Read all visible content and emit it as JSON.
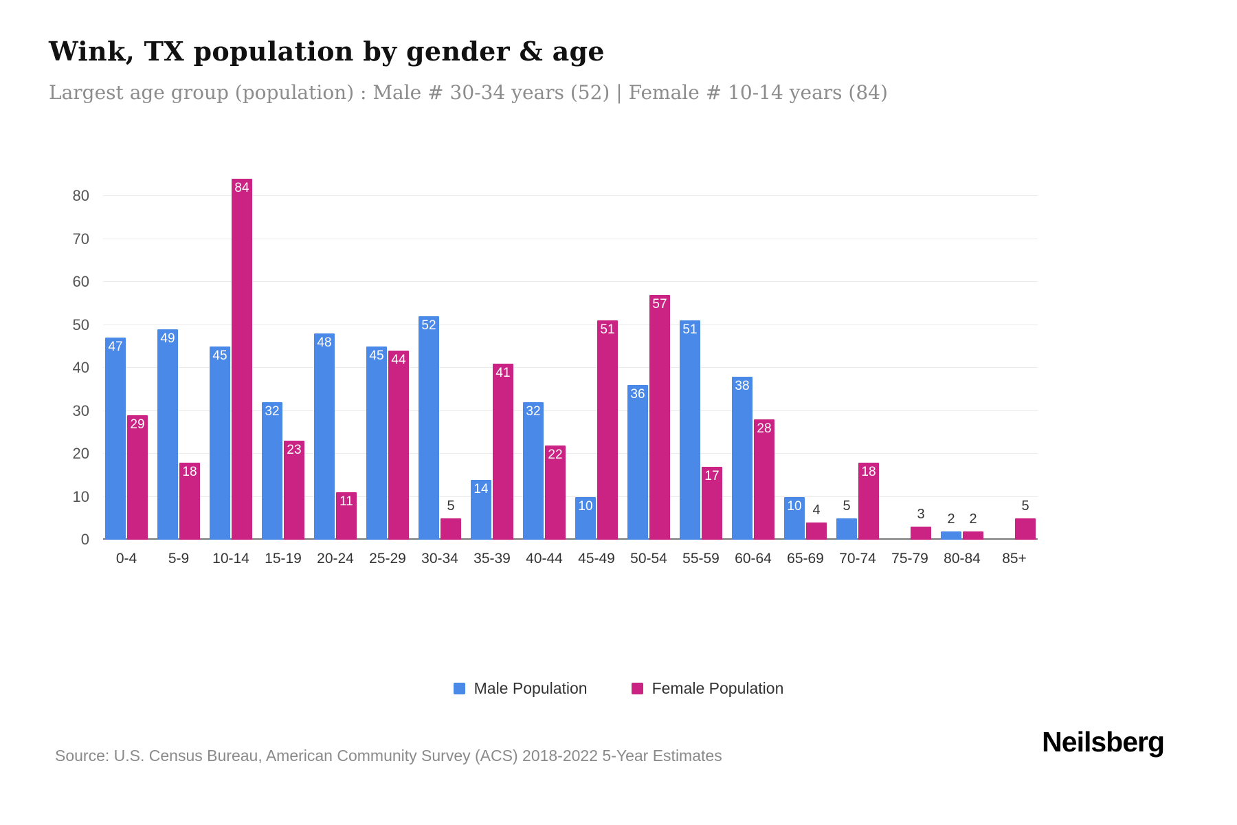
{
  "header": {
    "title": "Wink, TX population by gender & age",
    "subtitle": "Largest age group (population) : Male # 30-34 years (52) | Female # 10-14 years (84)"
  },
  "chart_data": {
    "type": "bar",
    "title": "Wink, TX population by gender & age",
    "categories": [
      "0-4",
      "5-9",
      "10-14",
      "15-19",
      "20-24",
      "25-29",
      "30-34",
      "35-39",
      "40-44",
      "45-49",
      "50-54",
      "55-59",
      "60-64",
      "65-69",
      "70-74",
      "75-79",
      "80-84",
      "85+"
    ],
    "series": [
      {
        "name": "Male Population",
        "color": "#4a89e8",
        "values": [
          47,
          49,
          45,
          32,
          48,
          45,
          52,
          14,
          32,
          10,
          36,
          51,
          38,
          10,
          5,
          0,
          2,
          0
        ]
      },
      {
        "name": "Female Population",
        "color": "#cb2384",
        "values": [
          29,
          18,
          84,
          23,
          11,
          44,
          5,
          41,
          22,
          51,
          57,
          17,
          28,
          4,
          18,
          3,
          2,
          5
        ]
      }
    ],
    "xlabel": "",
    "ylabel": "",
    "ylim": [
      0,
      85.6
    ],
    "yticks": [
      0,
      10,
      20,
      30,
      40,
      50,
      60,
      70,
      80
    ],
    "grid": true,
    "legend_position": "bottom"
  },
  "footer": {
    "source": "Source: U.S. Census Bureau, American Community Survey (ACS) 2018-2022 5-Year Estimates",
    "brand": "Neilsberg"
  }
}
